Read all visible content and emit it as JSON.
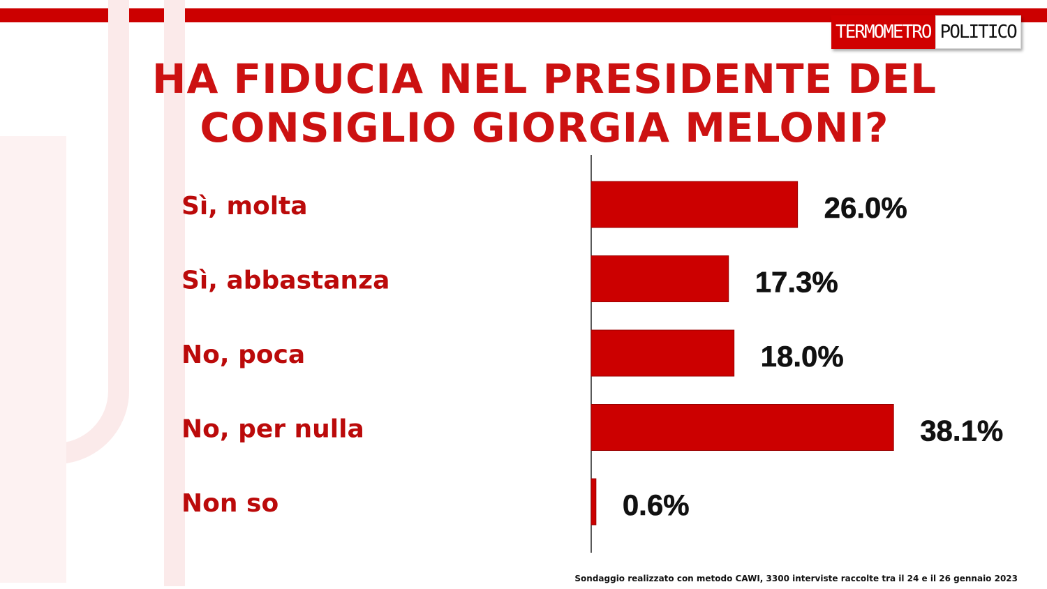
{
  "brand": {
    "part1": "TERMOMETRO",
    "part2": "POLITICO"
  },
  "colors": {
    "accent": "#cc0000",
    "bar": "#cc0000",
    "label": "#bb0a0a",
    "value": "#111111"
  },
  "chart_data": {
    "type": "bar",
    "orientation": "horizontal",
    "title_lines": [
      "HA FIDUCIA NEL PRESIDENTE DEL",
      "CONSIGLIO GIORGIA MELONI?"
    ],
    "categories": [
      "Sì, molta",
      "Sì, abbastanza",
      "No, poca",
      "No, per nulla",
      "Non so"
    ],
    "values": [
      26.0,
      17.3,
      18.0,
      38.1,
      0.6
    ],
    "value_labels": [
      "26.0%",
      "17.3%",
      "18.0%",
      "38.1%",
      "0.6%"
    ],
    "unit": "%",
    "xlim": [
      0,
      40
    ],
    "grid": false,
    "legend": "none"
  },
  "footnote": "Sondaggio realizzato con metodo CAWI, 3300 interviste raccolte tra il 24 e il 26 gennaio 2023"
}
